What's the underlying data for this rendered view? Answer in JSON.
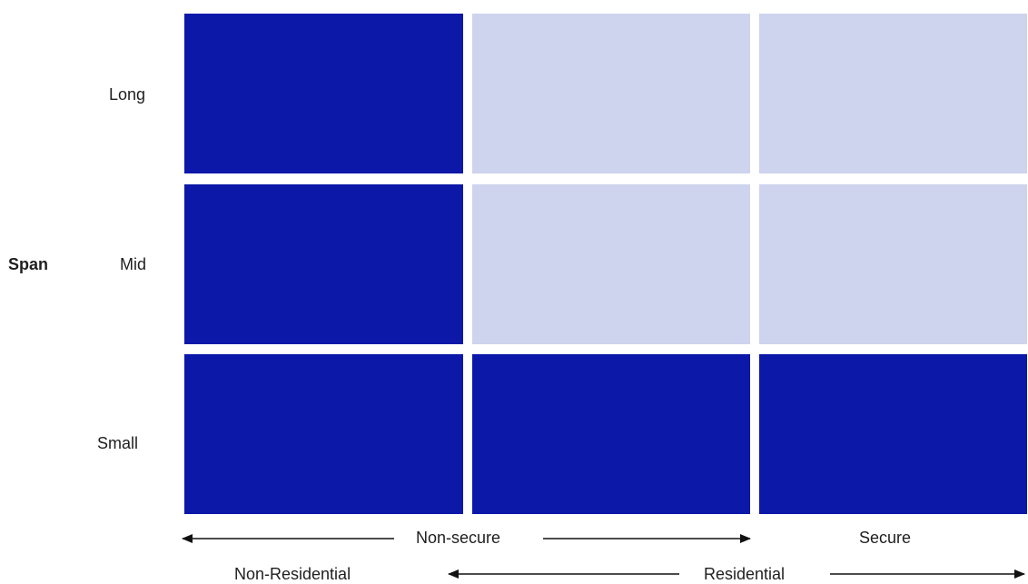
{
  "diagram": {
    "y_axis_title": "Span",
    "rows": [
      "Long",
      "Mid",
      "Small"
    ],
    "col_group_1": {
      "label": "Non-secure",
      "right_label": "Secure"
    },
    "col_group_2": {
      "left_label": "Non-Residential",
      "label": "Residential"
    },
    "colors": {
      "dark": "#0b18a8",
      "light": "#ced3ee",
      "arrow": "#111111"
    },
    "cells": [
      [
        "dark",
        "light",
        "light"
      ],
      [
        "dark",
        "light",
        "light"
      ],
      [
        "dark",
        "dark",
        "dark"
      ]
    ]
  }
}
